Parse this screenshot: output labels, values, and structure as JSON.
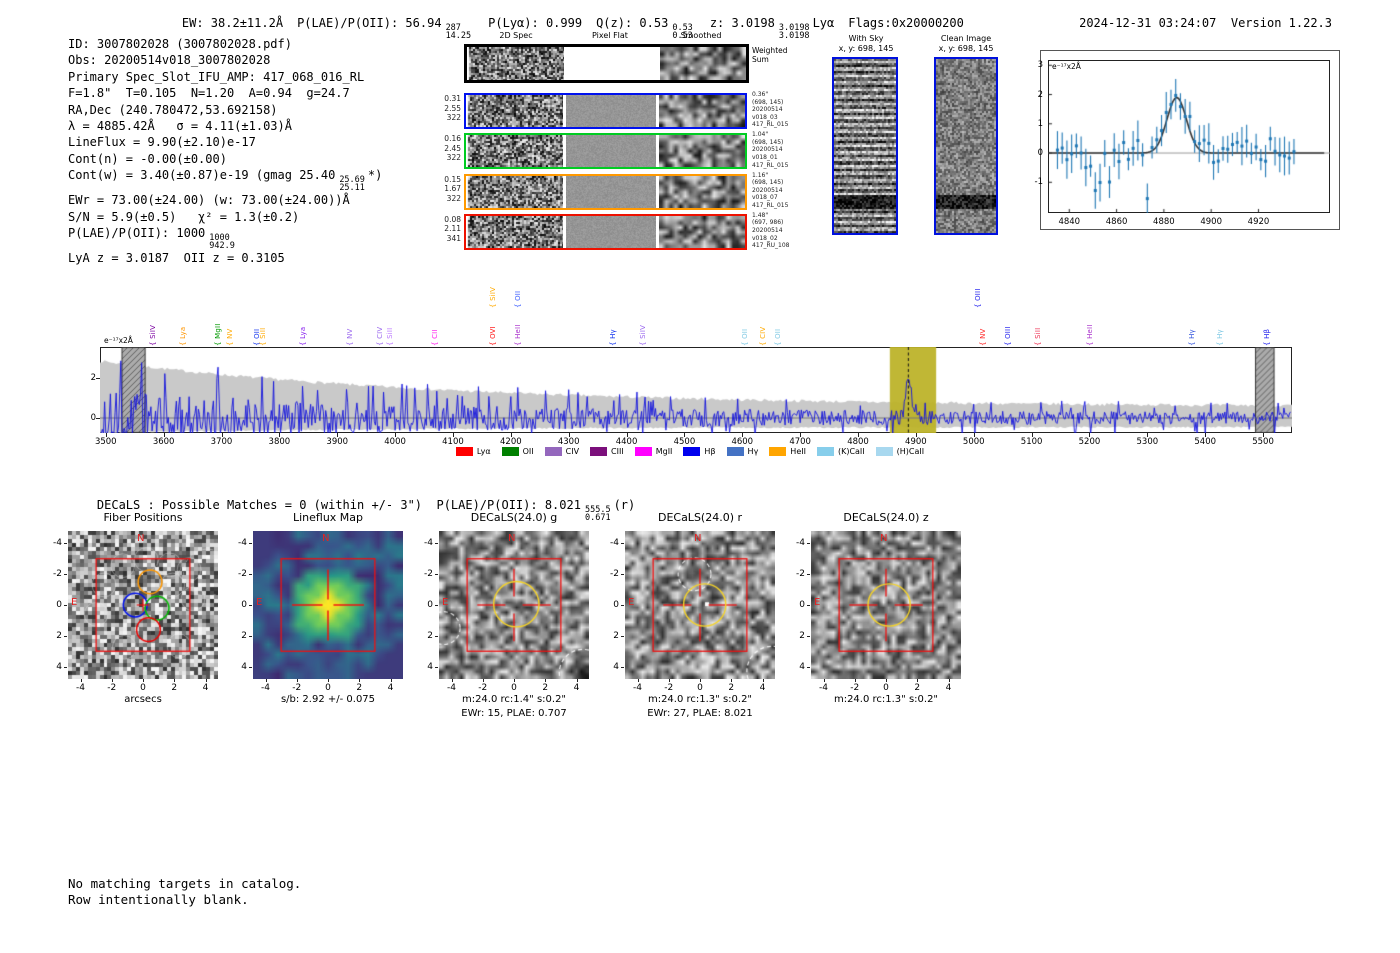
{
  "header": {
    "ew": "EW: 38.2±11.2Å",
    "plae_main": "P(LAE)/P(OII): 56.94",
    "plae_hi": "287",
    "plae_lo": "14.25",
    "plya": "P(Lyα): 0.999",
    "qz_main": "Q(z): 0.53",
    "qz_hi": "0.53",
    "qz_lo": "0.53",
    "z_main": "z: 3.0198",
    "z_hi": "3.0198",
    "z_lo": "3.0198",
    "z_type": "Lyα",
    "flags": "Flags:0x20000200",
    "datetime": "2024-12-31 03:24:07",
    "version": "Version 1.22.3"
  },
  "info": {
    "lines": [
      "ID: 3007802028 (3007802028.pdf)",
      "Obs: 20200514v018_3007802028",
      "Primary Spec_Slot_IFU_AMP: 417_068_016_RL",
      "F=1.8\"  T=0.105  N=1.20  A=0.94  g=24.7",
      "RA,Dec (240.780472,53.692158)",
      "λ = 4885.42Å   σ = 4.11(±1.03)Å",
      "LineFlux = 9.90(±2.10)e-17",
      "Cont(n) = -0.00(±0.00)"
    ],
    "line_contw": {
      "a": "Cont(w) = 3.40(±0.87)e-19 (gmag 25.40",
      "hi": "25.69",
      "lo": "25.11",
      "b": "*)"
    },
    "line_ewr": "EWr = 73.00(±24.00) (w: 73.00(±24.00))Å",
    "line_sn": "S/N = 5.9(±0.5)   χ² = 1.3(±0.2)",
    "line_plae": {
      "a": "P(LAE)/P(OII): 1000",
      "hi": "1000",
      "lo": "942.9"
    },
    "line_z": "LyA z = 3.0187  OII z = 0.3105"
  },
  "twod": {
    "col_headers": [
      "2D Spec",
      "Pixel Flat",
      "Smoothed"
    ],
    "weighted_label": "Weighted Sum",
    "rows": [
      {
        "color": "#0011ee",
        "left": [
          "0.31",
          "2.55",
          "322"
        ],
        "right": [
          "0.36\"",
          "(698, 145)",
          "20200514",
          "v018_03",
          "417_RL_015"
        ]
      },
      {
        "color": "#00cc22",
        "left": [
          "0.16",
          "2.45",
          "322"
        ],
        "right": [
          "1.04\"",
          "(698, 145)",
          "20200514",
          "v018_01",
          "417_RL_015"
        ]
      },
      {
        "color": "#ff9900",
        "left": [
          "0.15",
          "1.67",
          "322"
        ],
        "right": [
          "1.16\"",
          "(698, 145)",
          "20200514",
          "v018_07",
          "417_RL_015"
        ]
      },
      {
        "color": "#ee1100",
        "left": [
          "0.08",
          "2.11",
          "341"
        ],
        "right": [
          "1.48\"",
          "(697, 986)",
          "20200514",
          "v018_02",
          "417_RU_108"
        ]
      }
    ]
  },
  "sky": {
    "with_sky_title": "With Sky",
    "with_sky_xy": "x, y: 698, 145",
    "clean_title": "Clean Image",
    "clean_xy": "x, y: 698, 145"
  },
  "chart_data": [
    {
      "id": "line_fit_inset",
      "type": "line",
      "annotation": "e⁻¹⁷x2Å",
      "xlim": [
        4831,
        4950
      ],
      "ylim": [
        -2.05,
        3.2
      ],
      "xticks": [
        4840,
        4860,
        4880,
        4900,
        4920
      ],
      "yticks": [
        3,
        2,
        1,
        0,
        -1
      ],
      "gaussian_fit": {
        "center": 4885.42,
        "sigma": 4.11,
        "amplitude": 1.9
      },
      "series_note": "blue errorbar points: observed spectrum, noise ~±0.5 around 0 with emission line at 4885.42Å; black curve: Gaussian fit",
      "grid": false
    },
    {
      "id": "full_spectrum",
      "type": "line",
      "annotation": "e⁻¹⁷x2Å",
      "xlim": [
        3490,
        5550
      ],
      "ylim": [
        -0.75,
        3.55
      ],
      "xticks": [
        3500,
        3600,
        3700,
        3800,
        3900,
        4000,
        4100,
        4200,
        4300,
        4400,
        4500,
        4600,
        4700,
        4800,
        4900,
        5000,
        5100,
        5200,
        5300,
        5400,
        5500
      ],
      "yticks": [
        2,
        0
      ],
      "highlight_band": {
        "x0": 4855,
        "x1": 4935,
        "line_center": 4887,
        "color": "#bdb32a"
      },
      "masked_bands": [
        [
          3528,
          3568
        ],
        [
          5487,
          5519
        ]
      ],
      "noise_envelope": "gray error envelope ~2.8 at 3500Å declining to ~0.9 at 5500Å",
      "emission_peak": {
        "center": 4885.42,
        "amplitude": 2.3
      },
      "legend": [
        {
          "label": "Lyα",
          "color": "#ff0000"
        },
        {
          "label": "OII",
          "color": "#008000"
        },
        {
          "label": "CIV",
          "color": "#9467bd"
        },
        {
          "label": "CIII",
          "color": "#7b0f7b"
        },
        {
          "label": "MgII",
          "color": "#ff00ff"
        },
        {
          "label": "Hβ",
          "color": "#0000ee"
        },
        {
          "label": "Hγ",
          "color": "#4472c4"
        },
        {
          "label": "HeII",
          "color": "#ffa500"
        },
        {
          "label": "(K)CaII",
          "color": "#87ceeb"
        },
        {
          "label": "(H)CaII",
          "color": "#a8d8ef"
        }
      ],
      "line_labels": [
        {
          "text": "SiIV",
          "wave": 3582,
          "color": "#7a00a0",
          "raised": false
        },
        {
          "text": "Lya",
          "wave": 3633,
          "color": "#ff9500",
          "raised": false
        },
        {
          "text": "MgII",
          "wave": 3694,
          "color": "#009900",
          "raised": false
        },
        {
          "text": "NV",
          "wave": 3715,
          "color": "#ffaa00",
          "raised": false
        },
        {
          "text": "OII",
          "wave": 3761,
          "color": "#1133ee",
          "raised": false
        },
        {
          "text": "SiII",
          "wave": 3772,
          "color": "#ffaa00",
          "raised": false
        },
        {
          "text": "Lya",
          "wave": 3841,
          "color": "#8822ee",
          "raised": false
        },
        {
          "text": "NV",
          "wave": 3922,
          "color": "#9966ee",
          "raised": false
        },
        {
          "text": "CIV",
          "wave": 3974,
          "color": "#9966ee",
          "raised": false
        },
        {
          "text": "SiII",
          "wave": 3991,
          "color": "#bb77ff",
          "raised": false
        },
        {
          "text": "CII",
          "wave": 4069,
          "color": "#ff22ee",
          "raised": false
        },
        {
          "text": "SiIV",
          "wave": 4169,
          "color": "#ffaa00",
          "raised": true
        },
        {
          "text": "OVI",
          "wave": 4169,
          "color": "#ff1111",
          "raised": false
        },
        {
          "text": "OII",
          "wave": 4212,
          "color": "#3a5cff",
          "raised": true
        },
        {
          "text": "HeII",
          "wave": 4213,
          "color": "#aa33cc",
          "raised": false
        },
        {
          "text": "Hγ",
          "wave": 4377,
          "color": "#1133ee",
          "raised": false
        },
        {
          "text": "SiIV",
          "wave": 4429,
          "color": "#9966ee",
          "raised": false
        },
        {
          "text": "OII",
          "wave": 4605,
          "color": "#7ec8e3",
          "raised": false
        },
        {
          "text": "CIV",
          "wave": 4636,
          "color": "#ffaa00",
          "raised": false
        },
        {
          "text": "OII",
          "wave": 4662,
          "color": "#7ec8e3",
          "raised": false
        },
        {
          "text": "OIII",
          "wave": 5007,
          "color": "#2222ee",
          "raised": true
        },
        {
          "text": "NV",
          "wave": 5016,
          "color": "#ff2222",
          "raised": false
        },
        {
          "text": "OIII",
          "wave": 5059,
          "color": "#2222ee",
          "raised": false
        },
        {
          "text": "SiII",
          "wave": 5111,
          "color": "#ee3355",
          "raised": false
        },
        {
          "text": "HeII",
          "wave": 5201,
          "color": "#aa33cc",
          "raised": false
        },
        {
          "text": "Hγ",
          "wave": 5377,
          "color": "#3355dd",
          "raised": false
        },
        {
          "text": "Hγ",
          "wave": 5426,
          "color": "#7ec8e3",
          "raised": false
        },
        {
          "text": "Hβ",
          "wave": 5507,
          "color": "#2222ee",
          "raised": false
        }
      ]
    }
  ],
  "decals": {
    "header_a": "DECaLS : Possible Matches = 0 (within +/- 3\")  P(LAE)/P(OII): 8.021",
    "header_hi": "555.5",
    "header_lo": "0.671",
    "header_b": "(r)",
    "axis_ticks": [
      "-4",
      "-2",
      "0",
      "2",
      "4"
    ],
    "compass": {
      "n": "N",
      "e": "E"
    },
    "panels": [
      {
        "id": "fiber",
        "title": "Fiber Positions",
        "xlabel": "arcsecs",
        "captions": []
      },
      {
        "id": "flux",
        "title": "Lineflux Map",
        "captions": [
          "s/b: 2.92 +/- 0.075"
        ]
      },
      {
        "id": "g",
        "title": "DECaLS(24.0) g",
        "captions": [
          "m:24.0 rc:1.4\"  s:0.2\"",
          "EWr: 15, PLAE: 0.707"
        ]
      },
      {
        "id": "r",
        "title": "DECaLS(24.0) r",
        "captions": [
          "m:24.0 rc:1.3\"  s:0.2\"",
          "EWr: 27, PLAE: 8.021"
        ]
      },
      {
        "id": "z",
        "title": "DECaLS(24.0) z",
        "captions": [
          "m:24.0 rc:1.3\"  s:0.2\""
        ]
      }
    ]
  },
  "footer": {
    "line1": "No matching targets in catalog.",
    "line2": "Row intentionally blank."
  }
}
